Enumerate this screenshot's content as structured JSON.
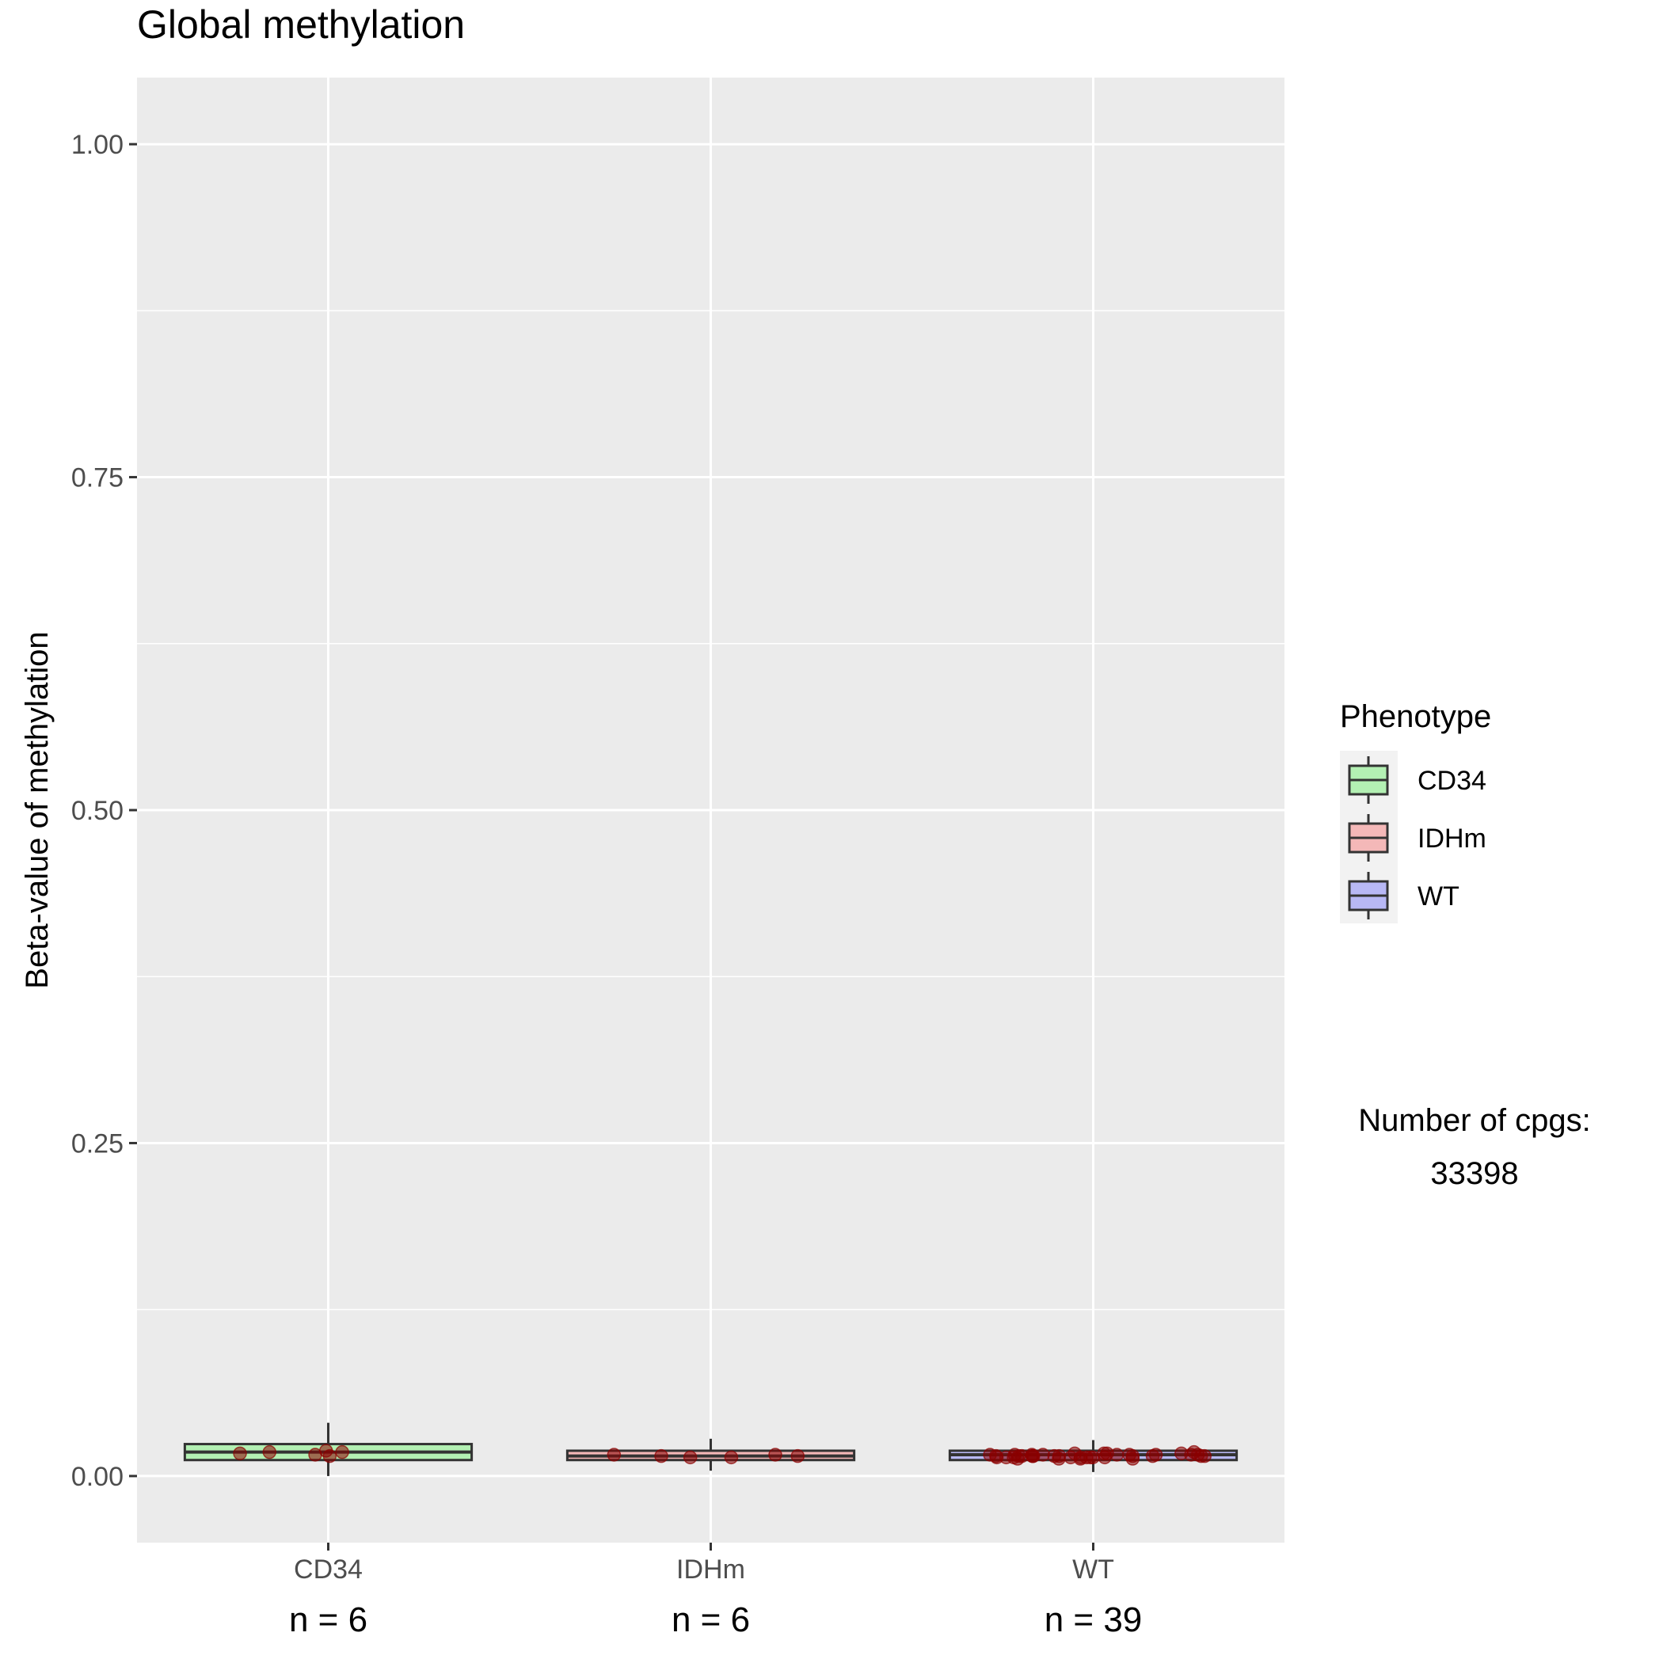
{
  "chart_data": {
    "type": "box",
    "title": "Global methylation",
    "xlabel": "",
    "ylabel": "Beta-value of methylation",
    "ylim": [
      -0.05,
      1.05
    ],
    "yticks": [
      0,
      0.25,
      0.5,
      0.75,
      1
    ],
    "ytick_labels": [
      "0.00",
      "0.25",
      "0.50",
      "0.75",
      "1.00"
    ],
    "grid": true,
    "legend": {
      "title": "Phenotype",
      "placement": "right",
      "entries": [
        {
          "label": "CD34",
          "color": "#b3f0b3"
        },
        {
          "label": "IDHm",
          "color": "#f4b8b8"
        },
        {
          "label": "WT",
          "color": "#b8b8f5"
        }
      ]
    },
    "annotation": {
      "line1": "Number of cpgs:",
      "line2": "33398"
    },
    "categories": [
      "CD34",
      "IDHm",
      "WT"
    ],
    "counts": [
      "n = 6",
      "n = 6",
      "n = 39"
    ],
    "boxes": [
      {
        "category": "CD34",
        "fill": "#b3f0b3",
        "q1": 0.012,
        "median": 0.018,
        "q3": 0.024,
        "whisker_low": 0.0,
        "whisker_high": 0.04
      },
      {
        "category": "IDHm",
        "fill": "#f4b8b8",
        "q1": 0.012,
        "median": 0.015,
        "q3": 0.019,
        "whisker_low": 0.004,
        "whisker_high": 0.028
      },
      {
        "category": "WT",
        "fill": "#b8b8f5",
        "q1": 0.012,
        "median": 0.016,
        "q3": 0.019,
        "whisker_low": 0.003,
        "whisker_high": 0.027
      }
    ],
    "points": {
      "color": "#8b0000",
      "CD34": [
        0.019,
        0.018,
        0.017,
        0.018,
        0.016,
        0.015
      ],
      "IDHm": [
        0.016,
        0.015,
        0.014,
        0.014,
        0.015,
        0.016
      ],
      "WT": [
        0.016,
        0.015,
        0.014,
        0.015,
        0.013,
        0.016,
        0.017,
        0.014,
        0.015,
        0.016,
        0.018,
        0.015,
        0.014,
        0.013,
        0.016,
        0.015,
        0.017,
        0.014,
        0.015,
        0.016,
        0.013,
        0.015,
        0.014,
        0.016,
        0.017,
        0.015,
        0.014,
        0.016,
        0.015,
        0.013,
        0.014,
        0.016,
        0.015,
        0.017,
        0.014,
        0.015,
        0.016,
        0.014,
        0.015
      ]
    }
  }
}
